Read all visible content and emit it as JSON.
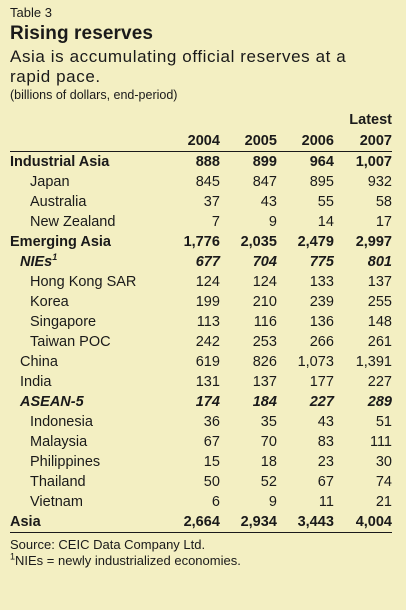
{
  "header": {
    "table_number": "Table 3",
    "title": "Rising reserves",
    "subtitle": "Asia is accumulating official reserves at a rapid pace.",
    "units": "(billions of dollars, end-period)"
  },
  "table": {
    "latest_label": "Latest",
    "years": [
      "2004",
      "2005",
      "2006",
      "2007"
    ],
    "rows": [
      {
        "label": "Industrial Asia",
        "style": "bold",
        "indent": 0,
        "values": [
          "888",
          "899",
          "964",
          "1,007"
        ]
      },
      {
        "label": "Japan",
        "style": "normal",
        "indent": 2,
        "values": [
          "845",
          "847",
          "895",
          "932"
        ]
      },
      {
        "label": "Australia",
        "style": "normal",
        "indent": 2,
        "values": [
          "37",
          "43",
          "55",
          "58"
        ]
      },
      {
        "label": "New Zealand",
        "style": "normal",
        "indent": 2,
        "values": [
          "7",
          "9",
          "14",
          "17"
        ]
      },
      {
        "label": "Emerging Asia",
        "style": "bold",
        "indent": 0,
        "values": [
          "1,776",
          "2,035",
          "2,479",
          "2,997"
        ]
      },
      {
        "label": "NIEs",
        "sup": "1",
        "style": "bolditalic",
        "indent": 1,
        "values": [
          "677",
          "704",
          "775",
          "801"
        ]
      },
      {
        "label": "Hong Kong SAR",
        "style": "normal",
        "indent": 2,
        "values": [
          "124",
          "124",
          "133",
          "137"
        ]
      },
      {
        "label": "Korea",
        "style": "normal",
        "indent": 2,
        "values": [
          "199",
          "210",
          "239",
          "255"
        ]
      },
      {
        "label": "Singapore",
        "style": "normal",
        "indent": 2,
        "values": [
          "113",
          "116",
          "136",
          "148"
        ]
      },
      {
        "label": "Taiwan POC",
        "style": "normal",
        "indent": 2,
        "values": [
          "242",
          "253",
          "266",
          "261"
        ]
      },
      {
        "label": "China",
        "style": "normal",
        "indent": 1,
        "values": [
          "619",
          "826",
          "1,073",
          "1,391"
        ]
      },
      {
        "label": "India",
        "style": "normal",
        "indent": 1,
        "values": [
          "131",
          "137",
          "177",
          "227"
        ]
      },
      {
        "label": "ASEAN-5",
        "style": "bolditalic",
        "indent": 1,
        "values": [
          "174",
          "184",
          "227",
          "289"
        ]
      },
      {
        "label": "Indonesia",
        "style": "normal",
        "indent": 2,
        "values": [
          "36",
          "35",
          "43",
          "51"
        ]
      },
      {
        "label": "Malaysia",
        "style": "normal",
        "indent": 2,
        "values": [
          "67",
          "70",
          "83",
          "111"
        ]
      },
      {
        "label": "Philippines",
        "style": "normal",
        "indent": 2,
        "values": [
          "15",
          "18",
          "23",
          "30"
        ]
      },
      {
        "label": "Thailand",
        "style": "normal",
        "indent": 2,
        "values": [
          "50",
          "52",
          "67",
          "74"
        ]
      },
      {
        "label": "Vietnam",
        "style": "normal",
        "indent": 2,
        "values": [
          "6",
          "9",
          "11",
          "21"
        ]
      },
      {
        "label": "Asia",
        "style": "bold",
        "indent": 0,
        "values": [
          "2,664",
          "2,934",
          "3,443",
          "4,004"
        ]
      }
    ]
  },
  "footer": {
    "source": "Source: CEIC Data Company Ltd.",
    "footnote_marker": "1",
    "footnote_text": "NIEs = newly industrialized economies."
  }
}
